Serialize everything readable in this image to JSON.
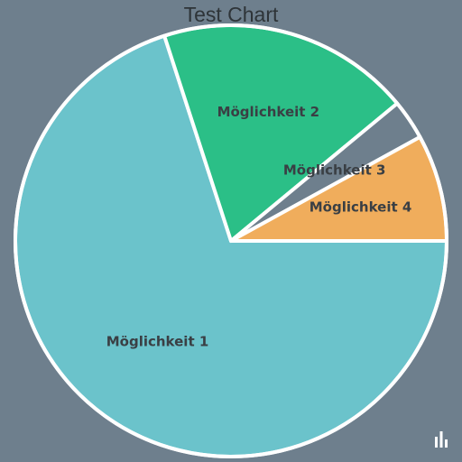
{
  "chart_data": {
    "type": "pie",
    "title": "Test Chart",
    "categories": [
      "Möglichkeit 1",
      "Möglichkeit 2",
      "Möglichkeit 3",
      "Möglichkeit 4"
    ],
    "values": [
      70,
      19,
      3,
      8
    ],
    "colors": [
      "#6bc3cb",
      "#2bbf87",
      "#6e7f8d",
      "#f0ad5c"
    ],
    "border_color": "#ffffff",
    "legend": "none"
  },
  "icons": {
    "corner_icon": "bar-chart-icon"
  }
}
